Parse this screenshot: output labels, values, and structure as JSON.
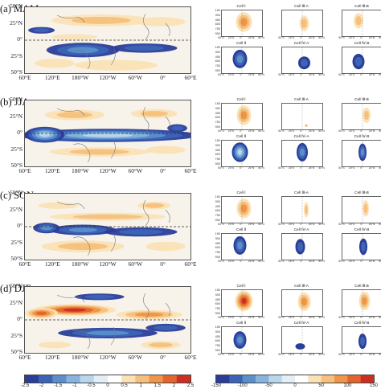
{
  "panels": [
    {
      "label": "(a)  MAM",
      "season": "MAM"
    },
    {
      "label": "(b)  JJA",
      "season": "JJA"
    },
    {
      "label": "(c)  SON",
      "season": "SON"
    },
    {
      "label": "(d)  DJF",
      "season": "DJF"
    }
  ],
  "map_axes": {
    "lat_ticks": [
      "50°N",
      "25°N",
      "0°",
      "25°S",
      "50°S"
    ],
    "lon_ticks": [
      "60°E",
      "120°E",
      "180°W",
      "120°W",
      "60°W",
      "0°",
      "60°E"
    ]
  },
  "cells": {
    "titles": [
      "Cell Ⅰ",
      "Cell Ⅲ-A",
      "Cell Ⅲ-B",
      "Cell Ⅱ",
      "Cell Ⅳ-A",
      "Cell Ⅳ-B"
    ],
    "pressure_ticks": [
      "150",
      "300",
      "450",
      "600",
      "750",
      "900"
    ],
    "lat_ticks": [
      "50°S",
      "25°S",
      "0°",
      "25°N",
      "50°N"
    ]
  },
  "colorbar_left": {
    "ticks": [
      "-2.5",
      "-2",
      "-1.5",
      "-1",
      "-0.5",
      "0",
      "0.5",
      "1",
      "1.5",
      "2",
      "2.5"
    ],
    "colors": [
      "#2b3d9a",
      "#3b64b6",
      "#5a8fcc",
      "#86b4de",
      "#b9d6ec",
      "#e3eef6",
      "#ffffff",
      "#fbe2b6",
      "#f6c07c",
      "#ef9448",
      "#e4642e",
      "#cc2e22"
    ]
  },
  "colorbar_right": {
    "ticks": [
      "-150",
      "-100",
      "-50",
      "0",
      "50",
      "100",
      "150"
    ],
    "colors": [
      "#2b3d9a",
      "#3b64b6",
      "#5a8fcc",
      "#86b4de",
      "#b9d6ec",
      "#e3eef6",
      "#ffffff",
      "#fbe2b6",
      "#f6c07c",
      "#ef9448",
      "#e4642e",
      "#cc2e22"
    ]
  }
}
